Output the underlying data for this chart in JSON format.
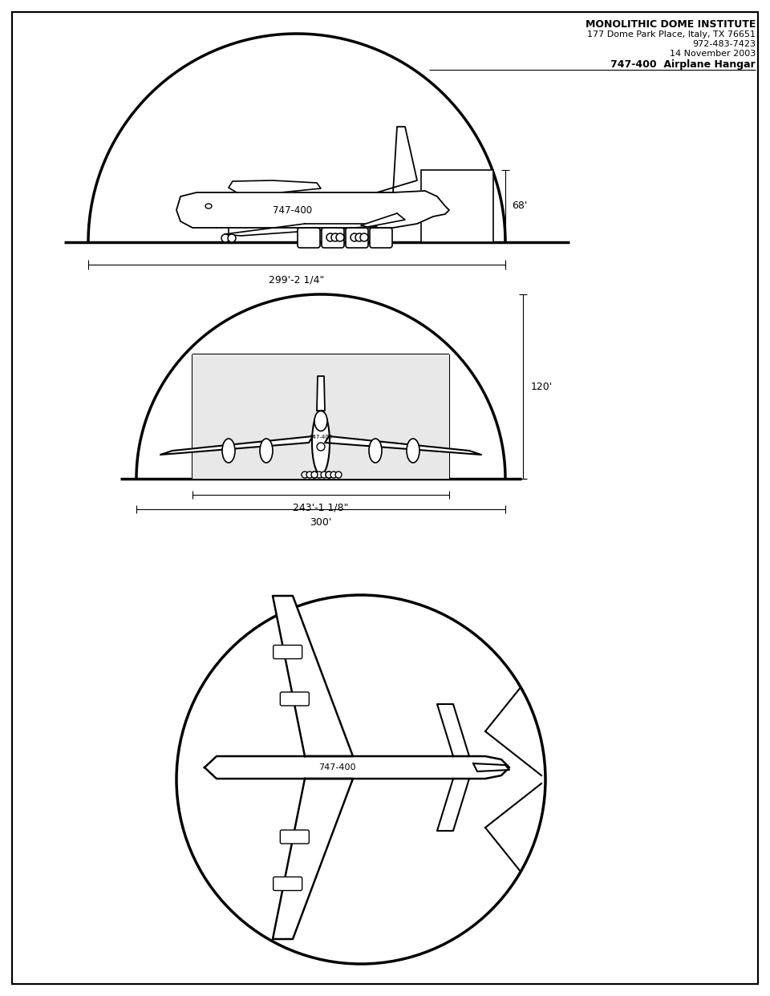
{
  "bg_color": "#f0f0f0",
  "page_bg": "#ffffff",
  "line_color": "#000000",
  "header": {
    "title": "MONOLITHIC DOME INSTITUTE",
    "line2": "177 Dome Park Place, Italy, TX 76651",
    "line3": "972-483-7423",
    "line4": "14 November 2003",
    "line5": "747-400  Airplane Hangar"
  },
  "dim1_label": "299'-2 1/4\"",
  "dim2_height": "68'",
  "dim3_label": "243'-1 1/8\"",
  "dim4_label": "300'",
  "dim5_height": "120'"
}
